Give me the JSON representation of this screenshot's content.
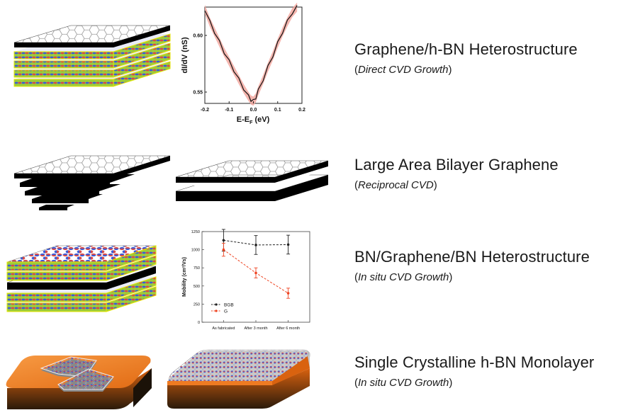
{
  "rows": [
    {
      "title": "Graphene/h-BN Heterostructure",
      "subtitle_open": "(",
      "subtitle": "Direct CVD Growth",
      "subtitle_close": ")"
    },
    {
      "title": "Large Area Bilayer Graphene",
      "subtitle_open": "(",
      "subtitle": "Reciprocal CVD",
      "subtitle_close": ")"
    },
    {
      "title": "BN/Graphene/BN Heterostructure",
      "subtitle_open": "(",
      "subtitle": "In situ CVD Growth",
      "subtitle_close": ")"
    },
    {
      "title": "Single Crystalline h-BN Monolayer",
      "subtitle_open": "(",
      "subtitle": "In situ CVD Growth",
      "subtitle_close": ")"
    }
  ],
  "colors": {
    "graphene_face": "#ffffff",
    "graphene_hex": "#9a9a9a",
    "layer_black": "#000000",
    "hbn_green": "#9ccc3a",
    "hbn_edge": "#e6e600",
    "atom_blue": "#3c5bd6",
    "atom_red": "#d64a4a",
    "substrate_orange": "#ef7b22",
    "substrate_dark": "#1b1208",
    "chart1_line": "#111111",
    "chart1_band": "#f2a8a0",
    "chart2_bgb": "#222222",
    "chart2_g": "#ee4422"
  },
  "chart_data": [
    {
      "type": "line",
      "xlabel": "E-E",
      "xlabel_sub": "F",
      "xlabel_unit": " (eV)",
      "ylabel": "dI/dV (nS)",
      "xlim": [
        -0.2,
        0.2
      ],
      "ylim": [
        0.54,
        0.625
      ],
      "xticks": [
        -0.2,
        -0.1,
        0.0,
        0.1,
        0.2
      ],
      "xtick_labels": [
        "-0.2",
        "-0.1",
        "0.0",
        "0.1",
        "0.2"
      ],
      "yticks": [
        0.55,
        0.6
      ],
      "ytick_labels": [
        "0.55",
        "0.60"
      ],
      "series": [
        {
          "x": [
            -0.2,
            -0.18,
            -0.16,
            -0.14,
            -0.12,
            -0.1,
            -0.08,
            -0.06,
            -0.04,
            -0.02,
            -0.01,
            0.0,
            0.01,
            0.02,
            0.04,
            0.06,
            0.08,
            0.1,
            0.12,
            0.14,
            0.16,
            0.18
          ],
          "y": [
            0.623,
            0.612,
            0.603,
            0.594,
            0.585,
            0.577,
            0.569,
            0.561,
            0.553,
            0.546,
            0.543,
            0.542,
            0.545,
            0.551,
            0.561,
            0.572,
            0.582,
            0.593,
            0.603,
            0.612,
            0.62,
            0.625
          ]
        }
      ]
    },
    {
      "type": "line",
      "ylabel": "Mobility (cm²/Vs)",
      "categories": [
        "As fabricated",
        "After 3 month",
        "After 6 month"
      ],
      "ylim": [
        0,
        1250
      ],
      "yticks": [
        0,
        250,
        500,
        750,
        1000,
        1250
      ],
      "ytick_labels": [
        "0",
        "250",
        "500",
        "750",
        "1000",
        "1250"
      ],
      "series": [
        {
          "name": "BGB",
          "values": [
            1130,
            1065,
            1070
          ],
          "errors": [
            150,
            130,
            130
          ]
        },
        {
          "name": "G",
          "values": [
            1000,
            680,
            400
          ],
          "errors": [
            90,
            70,
            70
          ]
        }
      ]
    }
  ]
}
